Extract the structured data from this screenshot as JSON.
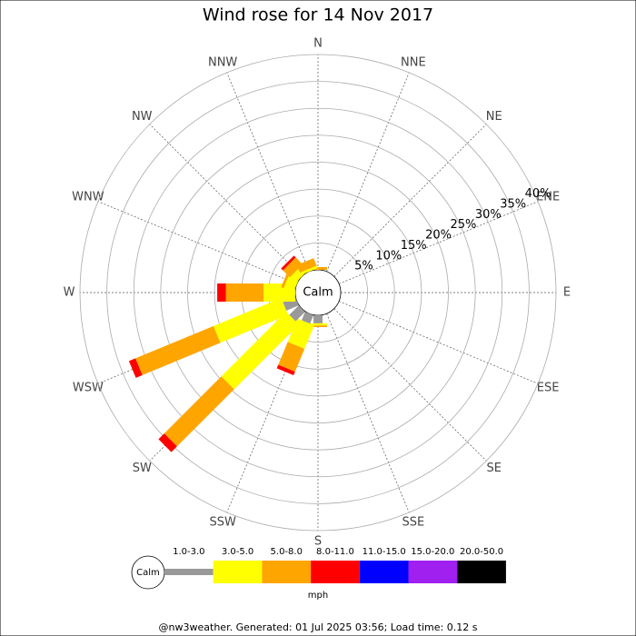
{
  "chart_data": {
    "type": "windrose",
    "title": "Wind rose for 14 Nov 2017",
    "calm_label": "Calm",
    "categories": [
      "N",
      "NNE",
      "NE",
      "ENE",
      "E",
      "ESE",
      "SE",
      "SSE",
      "S",
      "SSW",
      "SW",
      "WSW",
      "W",
      "WNW",
      "NW",
      "NNW"
    ],
    "rlim": [
      0,
      40
    ],
    "rticks": [
      {
        "value": 5,
        "label": "5%"
      },
      {
        "value": 10,
        "label": "10%"
      },
      {
        "value": 15,
        "label": "15%"
      },
      {
        "value": 20,
        "label": "20%"
      },
      {
        "value": 25,
        "label": "25%"
      },
      {
        "value": 30,
        "label": "30%"
      },
      {
        "value": 35,
        "label": "35%"
      },
      {
        "value": 40,
        "label": "40%"
      }
    ],
    "series": [
      {
        "name": "1.0-3.0",
        "color": "#999999",
        "values": [
          0,
          0,
          0,
          0,
          0,
          0,
          0,
          0,
          1.5,
          1.7,
          2.5,
          2.5,
          0,
          0,
          0,
          0
        ]
      },
      {
        "name": "3.0-5.0",
        "color": "#ffff00",
        "values": [
          0,
          0,
          0,
          0,
          0,
          0,
          0,
          0,
          0.4,
          4.7,
          17,
          13.6,
          5.9,
          2,
          1.5,
          0.5
        ]
      },
      {
        "name": "5.0-8.0",
        "color": "#ffa500",
        "values": [
          0.5,
          0,
          0,
          0,
          0,
          0,
          0,
          0,
          0.3,
          4.6,
          15,
          15.7,
          7,
          0.5,
          1.8,
          1.5
        ]
      },
      {
        "name": "8.0-11.0",
        "color": "#ff0000",
        "values": [
          0,
          0,
          0,
          0,
          0,
          0,
          0,
          0,
          0,
          0.7,
          1.5,
          1.3,
          1.6,
          0,
          0.5,
          0
        ]
      },
      {
        "name": "11.0-15.0",
        "color": "#0000ff",
        "values": [
          0,
          0,
          0,
          0,
          0,
          0,
          0,
          0,
          0,
          0,
          0,
          0,
          0,
          0,
          0,
          0
        ]
      },
      {
        "name": "15.0-20.0",
        "color": "#a020f0",
        "values": [
          0,
          0,
          0,
          0,
          0,
          0,
          0,
          0,
          0,
          0,
          0,
          0,
          0,
          0,
          0,
          0
        ]
      },
      {
        "name": "20.0-50.0",
        "color": "#000000",
        "values": [
          0,
          0,
          0,
          0,
          0,
          0,
          0,
          0,
          0,
          0,
          0,
          0,
          0,
          0,
          0,
          0
        ]
      }
    ],
    "unit_label": "mph",
    "footer": "@nw3weather. Generated: 01 Jul 2025 03:56; Load time: 0.12 s"
  }
}
